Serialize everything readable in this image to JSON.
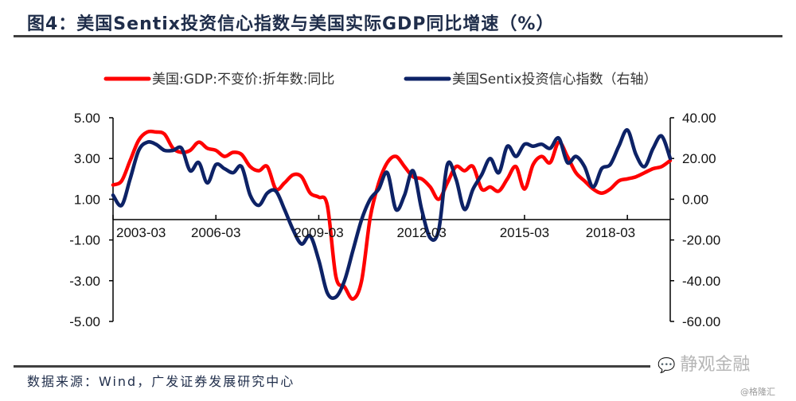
{
  "header": {
    "title": "图4：美国Sentix投资信心指数与美国实际GDP同比增速（%）"
  },
  "footer": {
    "source": "数据来源：Wind，广发证券发展研究中心",
    "watermark": "静观金融",
    "credit": "@格隆汇"
  },
  "chart_data": {
    "type": "line",
    "title": "图4：美国Sentix投资信心指数与美国实际GDP同比增速（%）",
    "x_start": "2003-03",
    "x_frequency": "quarterly",
    "x_tick_labels": [
      "2003-03",
      "2006-03",
      "2009-03",
      "2012-03",
      "2015-03",
      "2018-03"
    ],
    "legend_position": "top",
    "grid": false,
    "left_axis": {
      "ylim": [
        -5,
        5
      ],
      "tick_labels": [
        "5.00",
        "3.00",
        "1.00",
        "-1.00",
        "-3.00",
        "-5.00"
      ],
      "tick_values": [
        5,
        3,
        1,
        -1,
        -3,
        -5
      ]
    },
    "right_axis": {
      "ylim": [
        -60,
        40
      ],
      "tick_labels": [
        "40.00",
        "20.00",
        "0.00",
        "-20.00",
        "-40.00",
        "-60.00"
      ],
      "tick_values": [
        40,
        20,
        0,
        -20,
        -40,
        -60
      ]
    },
    "series": [
      {
        "name": "美国:GDP:不变价:折年数:同比",
        "axis": "left",
        "color": "#ff0000",
        "values": [
          1.7,
          1.9,
          2.9,
          3.9,
          4.3,
          4.3,
          4.2,
          3.5,
          3.3,
          3.4,
          3.8,
          3.5,
          3.4,
          3.1,
          3.3,
          3.2,
          2.6,
          2.4,
          2.6,
          1.5,
          1.8,
          2.2,
          2.1,
          1.3,
          1.1,
          0.7,
          -2.8,
          -3.3,
          -3.9,
          -3.0,
          0.1,
          1.8,
          2.8,
          3.1,
          2.6,
          2.1,
          2.0,
          1.6,
          1.0,
          1.8,
          2.6,
          2.4,
          2.6,
          1.5,
          1.6,
          1.4,
          2.0,
          2.6,
          1.5,
          2.7,
          3.1,
          2.8,
          3.8,
          3.1,
          2.3,
          1.9,
          1.5,
          1.3,
          1.5,
          1.9,
          2.0,
          2.1,
          2.3,
          2.5,
          2.6,
          2.9
        ]
      },
      {
        "name": "美国Sentix投资信心指数（右轴）",
        "axis": "right",
        "color": "#0d2266",
        "values": [
          2,
          -3,
          10,
          24,
          28,
          27,
          24,
          24,
          25,
          14,
          18,
          8,
          17,
          15,
          13,
          16,
          2,
          -3,
          3,
          4,
          -5,
          -15,
          -22,
          -18,
          -30,
          -46,
          -48,
          -40,
          -25,
          -10,
          0,
          5,
          13,
          -5,
          2,
          14,
          -5,
          -19,
          -15,
          17,
          10,
          -5,
          5,
          12,
          20,
          13,
          26,
          21,
          27,
          26,
          27,
          25,
          30,
          18,
          21,
          16,
          6,
          15,
          17,
          26,
          34,
          22,
          16,
          25,
          31,
          20
        ]
      }
    ]
  }
}
